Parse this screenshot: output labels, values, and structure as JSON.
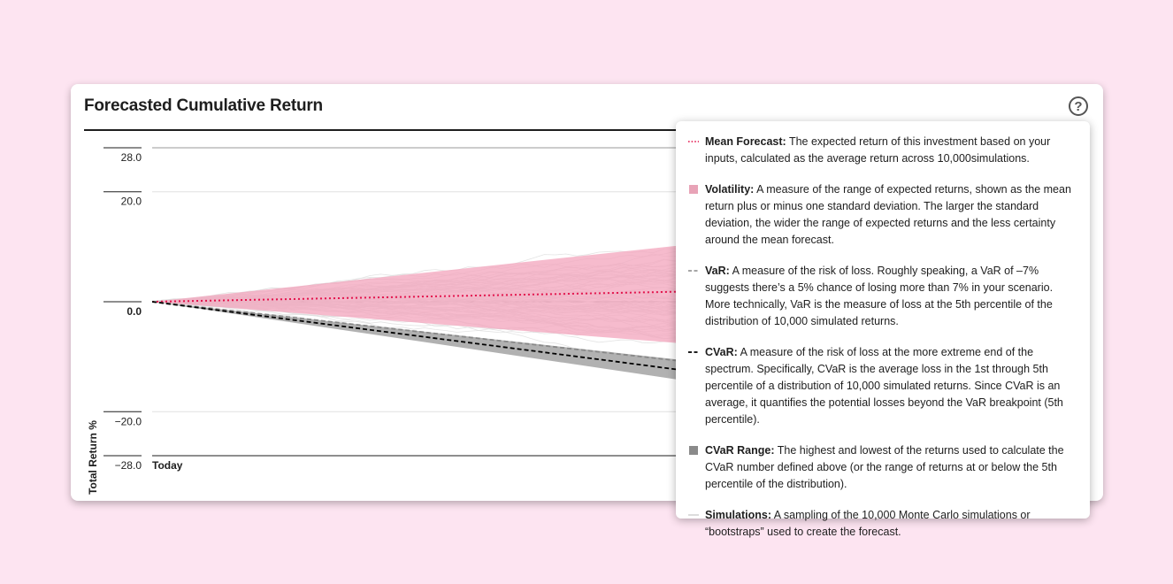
{
  "card": {
    "title": "Forecasted Cumulative Return",
    "help_label": "?"
  },
  "chart_data": {
    "type": "line",
    "ylabel": "Total Return %",
    "x_tick_labels": [
      "Today"
    ],
    "y_ticks": [
      28.0,
      20.0,
      0.0,
      -20.0,
      -28.0
    ],
    "y_tick_labels": [
      "28.0",
      "20.0",
      "0.0",
      "−20.0",
      "−28.0"
    ],
    "ylim": [
      -28.0,
      28.0
    ],
    "x": [
      0,
      1
    ],
    "series": [
      {
        "name": "Mean Forecast",
        "style": "dotted",
        "color": "#e3134c",
        "values": [
          0.0,
          3.4
        ]
      },
      {
        "name": "Volatility",
        "style": "band",
        "color": "#f3a8bf",
        "upper": [
          0.0,
          19.0
        ],
        "lower": [
          0.0,
          -14.0
        ]
      },
      {
        "name": "VaR",
        "style": "dashed",
        "color": "#888888",
        "values": [
          0.0,
          -20.0
        ]
      },
      {
        "name": "CVaR",
        "style": "dashed",
        "color": "#000000",
        "values": [
          0.0,
          -23.0
        ]
      },
      {
        "name": "CVaR Range",
        "style": "band",
        "color": "#a8a8a8",
        "upper": [
          0.0,
          -19.6
        ],
        "lower": [
          0.0,
          -26.4
        ]
      },
      {
        "name": "Simulations",
        "style": "thin",
        "color": "#dedede"
      }
    ],
    "grid": true,
    "legend_position": "right"
  },
  "legend": {
    "items": [
      {
        "key": "mean",
        "title": "Mean Forecast:",
        "text": " The expected return of this investment based on your inputs, calculated as the average return across 10,000simulations."
      },
      {
        "key": "vol",
        "title": "Volatility:",
        "text": " A measure of the range of expected returns, shown as the mean return plus or minus one standard deviation. The larger the standard deviation, the wider the range of expected returns and the less certainty around the mean forecast."
      },
      {
        "key": "var",
        "title": "VaR:",
        "text": " A measure of the risk of loss. Roughly speaking, a VaR of –7% suggests there’s a 5% chance of losing more than 7% in your scenario. More technically, VaR is the measure of loss at the 5th percentile of the distribution of 10,000 simulated returns."
      },
      {
        "key": "cvar",
        "title": "CVaR:",
        "text": " A measure of the risk of loss at the more extreme end of the spectrum. Specifically, CVaR is the average loss in the 1st through 5th percentile of a distribution of 10,000 simulated returns. Since CVaR is an average, it quantifies the potential losses beyond the VaR breakpoint (5th percentile)."
      },
      {
        "key": "cvarrange",
        "title": "CVaR Range:",
        "text": " The highest and lowest of the returns used to calculate the CVaR number defined above (or the range of returns at or below the 5th percentile of the distribution)."
      },
      {
        "key": "sims",
        "title": "Simulations:",
        "text": " A sampling of the 10,000 Monte Carlo simulations or “bootstraps” used to create the forecast."
      }
    ]
  }
}
